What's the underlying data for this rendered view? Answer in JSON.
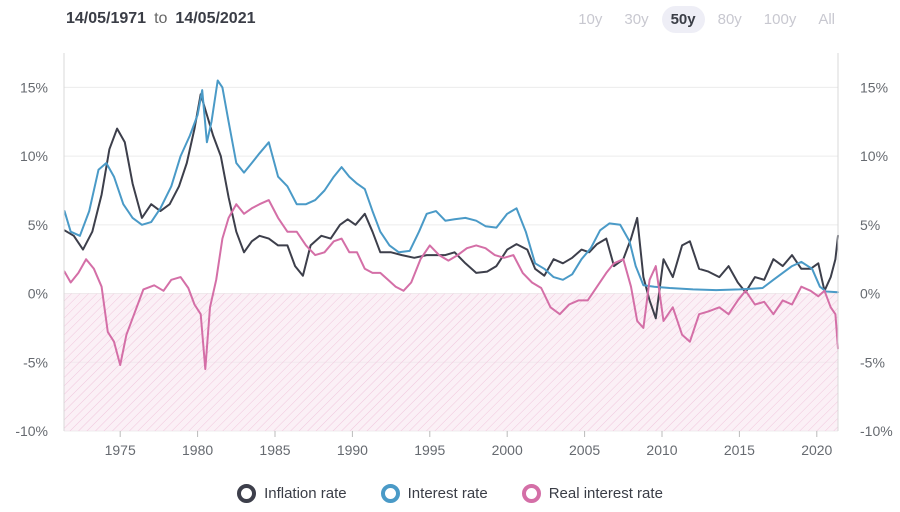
{
  "header": {
    "start_date": "14/05/1971",
    "to_label": "to",
    "end_date": "14/05/2021"
  },
  "range_buttons": [
    {
      "label": "10y",
      "active": false
    },
    {
      "label": "30y",
      "active": false
    },
    {
      "label": "50y",
      "active": true
    },
    {
      "label": "80y",
      "active": false
    },
    {
      "label": "100y",
      "active": false
    },
    {
      "label": "All",
      "active": false
    }
  ],
  "colors": {
    "inflation": "#3d3f4b",
    "interest": "#4a9ac7",
    "real": "#d46fa7",
    "negative_fill": "#f8e3ef",
    "grid": "#ececec"
  },
  "chart_data": {
    "type": "line",
    "title": "",
    "xlabel": "",
    "ylabel": "",
    "xlim": [
      1971.37,
      2021.37
    ],
    "ylim": [
      -10,
      17.5
    ],
    "x_ticks": [
      1975,
      1980,
      1985,
      1990,
      1995,
      2000,
      2005,
      2010,
      2015,
      2020
    ],
    "x_tick_labels": [
      "1975",
      "1980",
      "1985",
      "1990",
      "1995",
      "2000",
      "2005",
      "2010",
      "2015",
      "2020"
    ],
    "y_ticks": [
      15,
      10,
      5,
      0,
      -5,
      -10
    ],
    "y_tick_labels": [
      "15%",
      "10%",
      "5%",
      "0%",
      "-5%",
      "-10%"
    ],
    "shaded_negative_region": true,
    "series": [
      {
        "name": "Inflation rate",
        "color_key": "inflation",
        "points": [
          [
            1971.4,
            4.6
          ],
          [
            1972.0,
            4.2
          ],
          [
            1972.6,
            3.2
          ],
          [
            1973.2,
            4.5
          ],
          [
            1973.8,
            7.2
          ],
          [
            1974.3,
            10.5
          ],
          [
            1974.8,
            12.0
          ],
          [
            1975.3,
            11.0
          ],
          [
            1975.8,
            8.0
          ],
          [
            1976.4,
            5.5
          ],
          [
            1977.0,
            6.5
          ],
          [
            1977.6,
            6.0
          ],
          [
            1978.2,
            6.5
          ],
          [
            1978.8,
            7.8
          ],
          [
            1979.3,
            9.5
          ],
          [
            1979.8,
            12.0
          ],
          [
            1980.2,
            14.5
          ],
          [
            1980.6,
            13.0
          ],
          [
            1981.0,
            11.5
          ],
          [
            1981.5,
            10.0
          ],
          [
            1982.0,
            7.0
          ],
          [
            1982.5,
            4.5
          ],
          [
            1983.0,
            3.0
          ],
          [
            1983.5,
            3.8
          ],
          [
            1984.0,
            4.2
          ],
          [
            1984.6,
            4.0
          ],
          [
            1985.2,
            3.5
          ],
          [
            1985.8,
            3.5
          ],
          [
            1986.3,
            2.0
          ],
          [
            1986.8,
            1.3
          ],
          [
            1987.3,
            3.5
          ],
          [
            1988.0,
            4.2
          ],
          [
            1988.6,
            4.0
          ],
          [
            1989.2,
            5.0
          ],
          [
            1989.7,
            5.4
          ],
          [
            1990.2,
            5.0
          ],
          [
            1990.8,
            5.8
          ],
          [
            1991.3,
            4.5
          ],
          [
            1991.8,
            3.0
          ],
          [
            1992.5,
            3.0
          ],
          [
            1993.2,
            2.8
          ],
          [
            1994.0,
            2.6
          ],
          [
            1994.8,
            2.8
          ],
          [
            1995.4,
            2.8
          ],
          [
            1996.0,
            2.8
          ],
          [
            1996.6,
            3.0
          ],
          [
            1997.3,
            2.2
          ],
          [
            1998.0,
            1.5
          ],
          [
            1998.7,
            1.6
          ],
          [
            1999.3,
            2.0
          ],
          [
            2000.0,
            3.2
          ],
          [
            2000.6,
            3.6
          ],
          [
            2001.3,
            3.2
          ],
          [
            2001.8,
            1.8
          ],
          [
            2002.4,
            1.3
          ],
          [
            2003.0,
            2.5
          ],
          [
            2003.6,
            2.2
          ],
          [
            2004.2,
            2.6
          ],
          [
            2004.8,
            3.2
          ],
          [
            2005.3,
            3.0
          ],
          [
            2005.8,
            3.6
          ],
          [
            2006.4,
            4.0
          ],
          [
            2006.9,
            2.0
          ],
          [
            2007.5,
            2.5
          ],
          [
            2008.0,
            4.0
          ],
          [
            2008.4,
            5.5
          ],
          [
            2008.8,
            1.2
          ],
          [
            2009.2,
            -0.5
          ],
          [
            2009.6,
            -1.8
          ],
          [
            2010.1,
            2.5
          ],
          [
            2010.7,
            1.2
          ],
          [
            2011.3,
            3.5
          ],
          [
            2011.8,
            3.8
          ],
          [
            2012.4,
            1.8
          ],
          [
            2013.0,
            1.6
          ],
          [
            2013.7,
            1.2
          ],
          [
            2014.3,
            2.0
          ],
          [
            2014.9,
            0.8
          ],
          [
            2015.4,
            0.1
          ],
          [
            2016.0,
            1.2
          ],
          [
            2016.6,
            1.0
          ],
          [
            2017.2,
            2.5
          ],
          [
            2017.8,
            2.0
          ],
          [
            2018.4,
            2.8
          ],
          [
            2019.0,
            1.8
          ],
          [
            2019.6,
            1.8
          ],
          [
            2020.1,
            2.2
          ],
          [
            2020.5,
            0.2
          ],
          [
            2020.9,
            1.2
          ],
          [
            2021.2,
            2.5
          ],
          [
            2021.37,
            4.2
          ]
        ]
      },
      {
        "name": "Interest rate",
        "color_key": "interest",
        "points": [
          [
            1971.4,
            6.0
          ],
          [
            1971.8,
            4.5
          ],
          [
            1972.4,
            4.2
          ],
          [
            1973.0,
            6.0
          ],
          [
            1973.6,
            9.0
          ],
          [
            1974.1,
            9.5
          ],
          [
            1974.6,
            8.5
          ],
          [
            1975.2,
            6.5
          ],
          [
            1975.8,
            5.5
          ],
          [
            1976.4,
            5.0
          ],
          [
            1977.0,
            5.2
          ],
          [
            1977.6,
            6.2
          ],
          [
            1978.3,
            7.8
          ],
          [
            1978.9,
            10.0
          ],
          [
            1979.5,
            11.5
          ],
          [
            1980.0,
            13.0
          ],
          [
            1980.3,
            14.8
          ],
          [
            1980.6,
            11.0
          ],
          [
            1980.9,
            12.5
          ],
          [
            1981.3,
            15.5
          ],
          [
            1981.6,
            15.0
          ],
          [
            1982.0,
            12.5
          ],
          [
            1982.5,
            9.5
          ],
          [
            1983.0,
            8.8
          ],
          [
            1983.5,
            9.5
          ],
          [
            1984.0,
            10.2
          ],
          [
            1984.6,
            11.0
          ],
          [
            1985.2,
            8.5
          ],
          [
            1985.8,
            7.8
          ],
          [
            1986.4,
            6.5
          ],
          [
            1987.0,
            6.5
          ],
          [
            1987.6,
            6.8
          ],
          [
            1988.2,
            7.5
          ],
          [
            1988.8,
            8.5
          ],
          [
            1989.3,
            9.2
          ],
          [
            1989.8,
            8.5
          ],
          [
            1990.3,
            8.0
          ],
          [
            1990.8,
            7.6
          ],
          [
            1991.3,
            6.0
          ],
          [
            1991.8,
            4.5
          ],
          [
            1992.4,
            3.5
          ],
          [
            1993.0,
            3.0
          ],
          [
            1993.7,
            3.1
          ],
          [
            1994.3,
            4.5
          ],
          [
            1994.8,
            5.8
          ],
          [
            1995.4,
            6.0
          ],
          [
            1996.0,
            5.3
          ],
          [
            1996.6,
            5.4
          ],
          [
            1997.3,
            5.5
          ],
          [
            1998.0,
            5.3
          ],
          [
            1998.6,
            4.9
          ],
          [
            1999.3,
            4.8
          ],
          [
            2000.0,
            5.8
          ],
          [
            2000.6,
            6.2
          ],
          [
            2001.2,
            4.5
          ],
          [
            2001.8,
            2.2
          ],
          [
            2002.4,
            1.8
          ],
          [
            2003.0,
            1.2
          ],
          [
            2003.6,
            1.0
          ],
          [
            2004.2,
            1.4
          ],
          [
            2004.8,
            2.5
          ],
          [
            2005.4,
            3.3
          ],
          [
            2006.0,
            4.6
          ],
          [
            2006.6,
            5.1
          ],
          [
            2007.3,
            5.0
          ],
          [
            2007.9,
            3.8
          ],
          [
            2008.3,
            2.0
          ],
          [
            2008.8,
            0.6
          ],
          [
            2009.5,
            0.5
          ],
          [
            2010.5,
            0.4
          ],
          [
            2012.0,
            0.3
          ],
          [
            2013.5,
            0.25
          ],
          [
            2015.0,
            0.3
          ],
          [
            2015.8,
            0.35
          ],
          [
            2016.5,
            0.4
          ],
          [
            2017.2,
            1.0
          ],
          [
            2017.8,
            1.5
          ],
          [
            2018.4,
            2.0
          ],
          [
            2019.0,
            2.3
          ],
          [
            2019.7,
            1.8
          ],
          [
            2020.2,
            0.5
          ],
          [
            2020.6,
            0.15
          ],
          [
            2021.37,
            0.1
          ]
        ]
      },
      {
        "name": "Real interest rate",
        "color_key": "real",
        "points": [
          [
            1971.4,
            1.6
          ],
          [
            1971.8,
            0.8
          ],
          [
            1972.3,
            1.5
          ],
          [
            1972.8,
            2.5
          ],
          [
            1973.3,
            1.8
          ],
          [
            1973.8,
            0.5
          ],
          [
            1974.2,
            -2.8
          ],
          [
            1974.6,
            -3.5
          ],
          [
            1975.0,
            -5.2
          ],
          [
            1975.4,
            -3.0
          ],
          [
            1975.9,
            -1.5
          ],
          [
            1976.5,
            0.3
          ],
          [
            1977.2,
            0.6
          ],
          [
            1977.8,
            0.2
          ],
          [
            1978.3,
            1.0
          ],
          [
            1978.9,
            1.2
          ],
          [
            1979.4,
            0.4
          ],
          [
            1979.8,
            -0.8
          ],
          [
            1980.2,
            -1.5
          ],
          [
            1980.5,
            -5.5
          ],
          [
            1980.8,
            -1.0
          ],
          [
            1981.2,
            1.0
          ],
          [
            1981.6,
            4.0
          ],
          [
            1982.0,
            5.5
          ],
          [
            1982.5,
            6.5
          ],
          [
            1983.0,
            5.8
          ],
          [
            1983.5,
            6.2
          ],
          [
            1984.0,
            6.5
          ],
          [
            1984.6,
            6.8
          ],
          [
            1985.2,
            5.5
          ],
          [
            1985.8,
            4.5
          ],
          [
            1986.4,
            4.5
          ],
          [
            1987.0,
            3.5
          ],
          [
            1987.6,
            2.8
          ],
          [
            1988.2,
            3.0
          ],
          [
            1988.8,
            3.8
          ],
          [
            1989.3,
            4.0
          ],
          [
            1989.8,
            3.0
          ],
          [
            1990.3,
            3.0
          ],
          [
            1990.8,
            1.8
          ],
          [
            1991.3,
            1.5
          ],
          [
            1991.8,
            1.5
          ],
          [
            1992.3,
            1.0
          ],
          [
            1992.8,
            0.5
          ],
          [
            1993.3,
            0.2
          ],
          [
            1993.8,
            0.8
          ],
          [
            1994.4,
            2.5
          ],
          [
            1995.0,
            3.5
          ],
          [
            1995.6,
            2.8
          ],
          [
            1996.2,
            2.4
          ],
          [
            1996.8,
            2.8
          ],
          [
            1997.4,
            3.3
          ],
          [
            1998.0,
            3.5
          ],
          [
            1998.6,
            3.3
          ],
          [
            1999.2,
            2.8
          ],
          [
            1999.8,
            2.6
          ],
          [
            2000.4,
            2.8
          ],
          [
            2001.0,
            1.5
          ],
          [
            2001.6,
            0.8
          ],
          [
            2002.2,
            0.4
          ],
          [
            2002.8,
            -1.0
          ],
          [
            2003.4,
            -1.5
          ],
          [
            2004.0,
            -0.8
          ],
          [
            2004.6,
            -0.5
          ],
          [
            2005.2,
            -0.5
          ],
          [
            2005.8,
            0.5
          ],
          [
            2006.4,
            1.5
          ],
          [
            2006.9,
            2.2
          ],
          [
            2007.5,
            2.5
          ],
          [
            2008.0,
            0.5
          ],
          [
            2008.4,
            -2.0
          ],
          [
            2008.8,
            -2.5
          ],
          [
            2009.2,
            1.0
          ],
          [
            2009.6,
            2.0
          ],
          [
            2010.1,
            -2.0
          ],
          [
            2010.7,
            -1.0
          ],
          [
            2011.3,
            -3.0
          ],
          [
            2011.8,
            -3.5
          ],
          [
            2012.4,
            -1.5
          ],
          [
            2013.0,
            -1.3
          ],
          [
            2013.7,
            -1.0
          ],
          [
            2014.3,
            -1.5
          ],
          [
            2014.9,
            -0.5
          ],
          [
            2015.4,
            0.2
          ],
          [
            2016.0,
            -0.8
          ],
          [
            2016.6,
            -0.6
          ],
          [
            2017.2,
            -1.5
          ],
          [
            2017.8,
            -0.5
          ],
          [
            2018.4,
            -0.8
          ],
          [
            2019.0,
            0.5
          ],
          [
            2019.6,
            0.2
          ],
          [
            2020.1,
            -0.2
          ],
          [
            2020.5,
            0.2
          ],
          [
            2020.9,
            -1.0
          ],
          [
            2021.2,
            -1.5
          ],
          [
            2021.37,
            -4.0
          ]
        ]
      }
    ]
  }
}
